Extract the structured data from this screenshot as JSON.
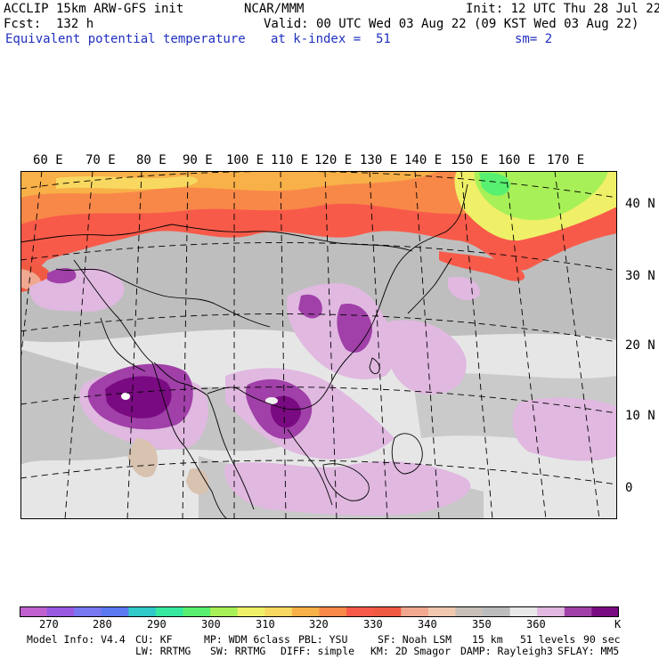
{
  "header": {
    "line1_left": "ACCLIP 15km ARW-GFS init",
    "line1_center": "NCAR/MMM",
    "line1_right": "Init: 12 UTC Thu 28 Jul 22",
    "line2_left": "Fcst:  132 h",
    "line2_right": "Valid: 00 UTC Wed 03 Aug 22 (09 KST Wed 03 Aug 22)",
    "line3_left": "Equivalent potential temperature",
    "line3_center": "at k-index =  51",
    "line3_right": "sm= 2"
  },
  "map": {
    "lon_labels": [
      "60 E",
      "70 E",
      "80 E",
      "90 E",
      "100 E",
      "110 E",
      "120 E",
      "130 E",
      "140 E",
      "150 E",
      "160 E",
      "170 E"
    ],
    "lat_labels": [
      "40 N",
      "30 N",
      "20 N",
      "10 N",
      "0"
    ]
  },
  "colorbar": {
    "colors": [
      "#c060d0",
      "#9a5ae0",
      "#7878f0",
      "#5a78f0",
      "#30c8c8",
      "#36e8a0",
      "#58f070",
      "#a8f058",
      "#f0f068",
      "#f8d860",
      "#f8b048",
      "#f88848",
      "#f85a4a",
      "#f05a42",
      "#f0a890",
      "#f0c8b0",
      "#c8c0b8",
      "#bcbcbc",
      "#e8e8e8",
      "#e0b8e0",
      "#a040a8",
      "#7a0a82"
    ],
    "ticks": [
      "270",
      "280",
      "290",
      "300",
      "310",
      "320",
      "330",
      "340",
      "350",
      "360"
    ],
    "unit": "K"
  },
  "footer": {
    "model_info": "Model Info: V4.4",
    "cu": "CU: KF",
    "mp": "MP: WDM 6class",
    "pbl": "PBL: YSU",
    "sf": "SF: Noah LSM",
    "res": "15 km",
    "levels": "51 levels",
    "dt": "90 sec",
    "lw": "LW: RRTMG",
    "sw": "SW: RRTMG",
    "diff": "DIFF: simple",
    "km": "KM: 2D Smagor",
    "damp": "DAMP: Rayleigh3",
    "sflay": "SFLAY: MM5"
  }
}
